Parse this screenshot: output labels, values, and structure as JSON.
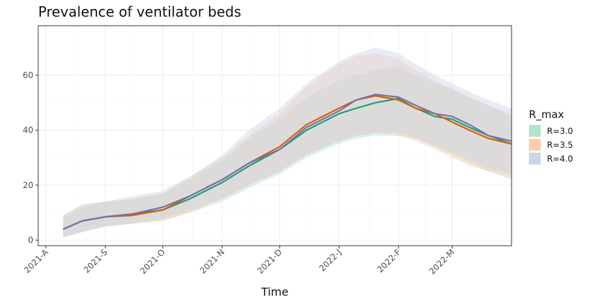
{
  "chart_data": {
    "type": "line",
    "title": "Prevalence of ventilator beds",
    "xlabel": "Time",
    "ylabel": "",
    "x_tick_labels": [
      "2021-A",
      "2021-S",
      "2021-O",
      "2021-N",
      "2021-D",
      "2022-J",
      "2022-F",
      "2022-M"
    ],
    "x_tick_dates": [
      "2021-08-01",
      "2021-09-01",
      "2021-10-01",
      "2021-11-01",
      "2021-12-01",
      "2022-01-01",
      "2022-02-01",
      "2022-03-01"
    ],
    "xlim": [
      "2021-07-28",
      "2022-04-01"
    ],
    "y_ticks": [
      0,
      20,
      40,
      60
    ],
    "ylim": [
      -2,
      78
    ],
    "grid": true,
    "legend": {
      "title": "R_max",
      "position": "right"
    },
    "series": [
      {
        "name": "R=3.0",
        "color": "#1b9e77",
        "fill": "#b3e2cd",
        "x": [
          "2021-08-10",
          "2021-08-20",
          "2021-09-01",
          "2021-09-15",
          "2021-10-01",
          "2021-10-15",
          "2021-11-01",
          "2021-11-15",
          "2021-12-01",
          "2021-12-15",
          "2022-01-01",
          "2022-01-10",
          "2022-01-20",
          "2022-02-01",
          "2022-02-10",
          "2022-02-20",
          "2022-03-01",
          "2022-03-10",
          "2022-03-20",
          "2022-04-01"
        ],
        "values": [
          4,
          7,
          8.5,
          9.5,
          11,
          15,
          21,
          27,
          33,
          40,
          46,
          48,
          50,
          51.5,
          48,
          45,
          44,
          41,
          38,
          35
        ],
        "lower": [
          1,
          3,
          5,
          6,
          7,
          10,
          14,
          19,
          24,
          30,
          35,
          37,
          38,
          38,
          37,
          34,
          31,
          28,
          25,
          22
        ],
        "upper": [
          8,
          12,
          14,
          15,
          17,
          22,
          29,
          37,
          44,
          52,
          58,
          60,
          62,
          63,
          60,
          57,
          55,
          52,
          49,
          45
        ]
      },
      {
        "name": "R=3.5",
        "color": "#d95f02",
        "fill": "#fdcdac",
        "x": [
          "2021-08-10",
          "2021-08-20",
          "2021-09-01",
          "2021-09-15",
          "2021-10-01",
          "2021-10-15",
          "2021-11-01",
          "2021-11-15",
          "2021-12-01",
          "2021-12-15",
          "2022-01-01",
          "2022-01-10",
          "2022-01-20",
          "2022-02-01",
          "2022-02-10",
          "2022-02-20",
          "2022-03-01",
          "2022-03-10",
          "2022-03-20",
          "2022-04-01"
        ],
        "values": [
          4,
          7,
          8.5,
          9,
          11,
          16,
          22,
          28,
          34,
          42,
          48,
          51,
          52.5,
          51,
          48,
          46,
          43,
          40,
          37,
          35
        ],
        "lower": [
          1,
          3,
          5,
          6,
          7,
          10,
          15,
          20,
          25,
          31,
          36,
          38,
          39,
          38,
          36,
          33,
          30,
          27,
          25,
          23
        ],
        "upper": [
          9,
          13,
          14,
          15,
          17,
          23,
          30,
          38,
          46,
          56,
          64,
          67,
          68,
          66,
          62,
          58,
          55,
          52,
          49,
          46
        ]
      },
      {
        "name": "R=4.0",
        "color": "#7570b3",
        "fill": "#cbd5e8",
        "x": [
          "2021-08-10",
          "2021-08-20",
          "2021-09-01",
          "2021-09-15",
          "2021-10-01",
          "2021-10-15",
          "2021-11-01",
          "2021-11-15",
          "2021-12-01",
          "2021-12-15",
          "2022-01-01",
          "2022-01-10",
          "2022-01-20",
          "2022-02-01",
          "2022-02-10",
          "2022-02-20",
          "2022-03-01",
          "2022-03-10",
          "2022-03-20",
          "2022-04-01"
        ],
        "values": [
          4,
          7,
          8.5,
          9.5,
          12,
          16,
          22,
          28,
          33,
          41,
          47,
          51,
          53,
          52,
          49,
          46,
          45,
          42,
          38,
          36
        ],
        "lower": [
          1,
          3,
          5,
          6,
          8,
          11,
          15,
          20,
          25,
          31,
          36,
          38,
          39,
          39,
          37,
          34,
          32,
          29,
          26,
          24
        ],
        "upper": [
          9,
          13,
          14,
          16,
          18,
          23,
          31,
          40,
          48,
          57,
          65,
          68,
          70,
          68,
          64,
          60,
          57,
          54,
          51,
          48
        ]
      }
    ]
  }
}
